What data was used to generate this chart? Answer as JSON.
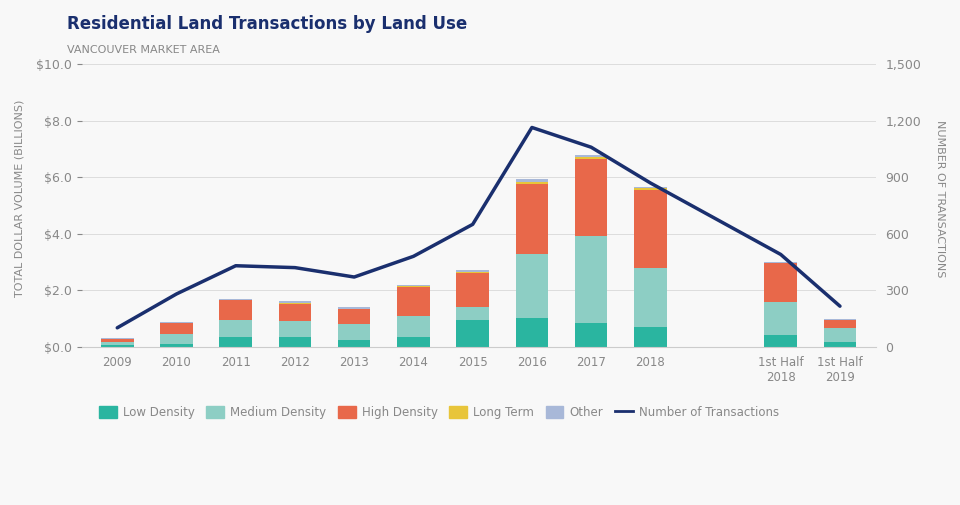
{
  "title": "Residential Land Transactions by Land Use",
  "subtitle": "VANCOUVER MARKET AREA",
  "ylabel_left": "TOTAL DOLLAR VOLUME (BILLIONS)",
  "ylabel_right": "NUMBER OF TRANSACTIONS",
  "categories": [
    "2009",
    "2010",
    "2011",
    "2012",
    "2013",
    "2014",
    "2015",
    "2016",
    "2017",
    "2018",
    "1st Half\n2018",
    "1st Half\n2019"
  ],
  "low_density": [
    0.07,
    0.08,
    0.35,
    0.35,
    0.25,
    0.35,
    0.95,
    1.0,
    0.82,
    0.68,
    0.42,
    0.18
  ],
  "medium_density": [
    0.1,
    0.35,
    0.6,
    0.55,
    0.55,
    0.75,
    0.45,
    2.3,
    3.1,
    2.1,
    1.15,
    0.48
  ],
  "high_density": [
    0.1,
    0.42,
    0.7,
    0.6,
    0.55,
    1.0,
    1.2,
    2.45,
    2.72,
    2.78,
    1.38,
    0.28
  ],
  "long_term": [
    0.0,
    0.0,
    0.0,
    0.05,
    0.0,
    0.05,
    0.05,
    0.1,
    0.08,
    0.05,
    0.02,
    0.0
  ],
  "other": [
    0.02,
    0.03,
    0.05,
    0.07,
    0.05,
    0.05,
    0.05,
    0.08,
    0.07,
    0.05,
    0.02,
    0.05
  ],
  "transactions": [
    100,
    280,
    430,
    420,
    370,
    480,
    650,
    1165,
    1060,
    870,
    490,
    215
  ],
  "bar_width": 0.55,
  "ylim_left": [
    0,
    10.5
  ],
  "ylim_right": [
    0,
    1575
  ],
  "yticks_left": [
    0,
    2.0,
    4.0,
    6.0,
    8.0,
    10.0
  ],
  "yticks_right": [
    0,
    300,
    600,
    900,
    1200,
    1500
  ],
  "color_low_density": "#2ab5a0",
  "color_medium_density": "#8dcec4",
  "color_high_density": "#e8684a",
  "color_long_term": "#e8c53a",
  "color_other": "#a8b8d8",
  "color_line": "#1a2f6e",
  "color_title": "#1a2f6e",
  "color_subtitle": "#888888",
  "background_color": "#f8f8f8",
  "legend_labels": [
    "Low Density",
    "Medium Density",
    "High Density",
    "Long Term",
    "Other",
    "Number of Transactions"
  ]
}
